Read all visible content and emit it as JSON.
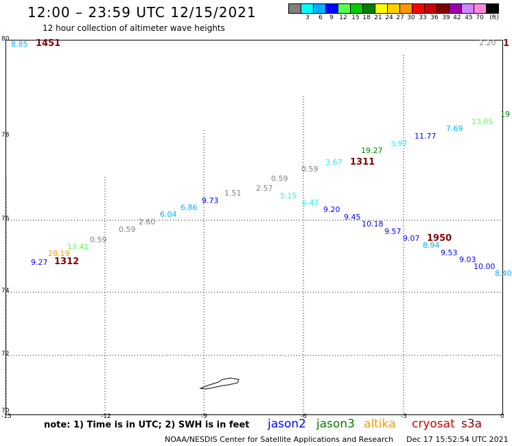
{
  "header": {
    "title": "12:00 – 23:59 UTC 12/15/2021",
    "subtitle": "12 hour collection of altimeter wave heights"
  },
  "legend": {
    "colors": [
      "#7f7f7f",
      "#00ffff",
      "#00b0ff",
      "#0000ff",
      "#55ff55",
      "#00cc00",
      "#008000",
      "#ffff00",
      "#ffd000",
      "#ff9900",
      "#ff0000",
      "#cc0000",
      "#800000",
      "#9900aa",
      "#cc88ff",
      "#ff88dd",
      "#000000"
    ],
    "labels": [
      "3",
      "6",
      "9",
      "12",
      "15",
      "18",
      "21",
      "24",
      "27",
      "30",
      "33",
      "36",
      "39",
      "42",
      "45",
      "70",
      "(ft)"
    ]
  },
  "axes": {
    "y_labels": [
      "80",
      "78",
      "76",
      "74",
      "72",
      "70"
    ],
    "x_labels": [
      "-15",
      "-12",
      "-9",
      "-6",
      "-3",
      "0"
    ]
  },
  "pass_ids": [
    "1451",
    "1",
    "1311",
    "1312",
    "1950"
  ],
  "wave_heights": [
    {
      "text": "8.85",
      "color": "#00b0ff"
    },
    {
      "text": "2.20",
      "color": "#7f7f7f"
    },
    {
      "text": "19",
      "color": "#008000"
    },
    {
      "text": "13.05",
      "color": "#55ff55"
    },
    {
      "text": "7.69",
      "color": "#00b0ff"
    },
    {
      "text": "11.77",
      "color": "#0000ff"
    },
    {
      "text": "3.97",
      "color": "#00ffff"
    },
    {
      "text": "19.27",
      "color": "#008000"
    },
    {
      "text": "3.67",
      "color": "#00ffff"
    },
    {
      "text": "0.59",
      "color": "#7f7f7f"
    },
    {
      "text": "0.59",
      "color": "#7f7f7f"
    },
    {
      "text": "2.57",
      "color": "#7f7f7f"
    },
    {
      "text": "1.51",
      "color": "#7f7f7f"
    },
    {
      "text": "5.15",
      "color": "#00ffff"
    },
    {
      "text": "9.73",
      "color": "#0000ff"
    },
    {
      "text": "6.47",
      "color": "#00ffff"
    },
    {
      "text": "6.86",
      "color": "#00b0ff"
    },
    {
      "text": "9.20",
      "color": "#0000ff"
    },
    {
      "text": "6.04",
      "color": "#00b0ff"
    },
    {
      "text": "9.45",
      "color": "#0000ff"
    },
    {
      "text": "2.60",
      "color": "#7f7f7f"
    },
    {
      "text": "10.18",
      "color": "#0000ff"
    },
    {
      "text": "0.59",
      "color": "#7f7f7f"
    },
    {
      "text": "9.57",
      "color": "#0000ff"
    },
    {
      "text": "0.59",
      "color": "#7f7f7f"
    },
    {
      "text": "9.07",
      "color": "#0000ff"
    },
    {
      "text": "13.41",
      "color": "#55ff55"
    },
    {
      "text": "8.94",
      "color": "#00b0ff"
    },
    {
      "text": "28.19",
      "color": "#ff9900"
    },
    {
      "text": "9.53",
      "color": "#0000ff"
    },
    {
      "text": "9.27",
      "color": "#0000ff"
    },
    {
      "text": "9.03",
      "color": "#0000ff"
    },
    {
      "text": "10.00",
      "color": "#0000ff"
    },
    {
      "text": "8.40",
      "color": "#00b0ff"
    }
  ],
  "footer": {
    "note": "note: 1) Time is in UTC; 2) SWH is in feet",
    "satellites": [
      {
        "name": "jason2",
        "color": "#0000ff"
      },
      {
        "name": "jason3",
        "color": "#008000"
      },
      {
        "name": "altika",
        "color": "#ff9900"
      },
      {
        "name": "cryosat",
        "color": "#cc0000"
      },
      {
        "name": "s3a",
        "color": "#800000"
      }
    ],
    "credit": "NOAA/NESDIS Center for Satellite Applications and Research",
    "timestamp": "Dec 17 15:52:54 UTC 2021"
  }
}
